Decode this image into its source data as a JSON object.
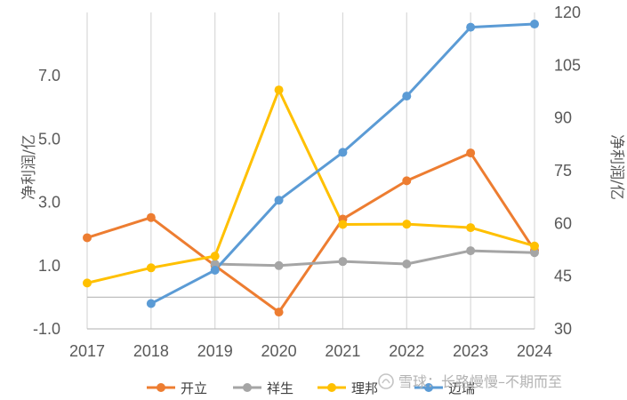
{
  "chart_data": {
    "type": "line",
    "x": [
      "2017",
      "2018",
      "2019",
      "2020",
      "2021",
      "2022",
      "2023",
      "2024"
    ],
    "left_axis": {
      "label": "净利润/亿",
      "ylim": [
        -1.0,
        9.0
      ],
      "tick_values": [
        -1.0,
        1.0,
        3.0,
        5.0,
        7.0
      ],
      "tick_labels": [
        "-1.0",
        "1.0",
        "3.0",
        "5.0",
        "7.0"
      ]
    },
    "right_axis": {
      "label": "净利润/亿",
      "ylim": [
        30,
        120
      ],
      "tick_values": [
        30,
        45,
        60,
        75,
        90,
        105,
        120
      ],
      "tick_labels": [
        "30",
        "45",
        "60",
        "75",
        "90",
        "105",
        "120"
      ]
    },
    "series": [
      {
        "name": "开立",
        "axis": "left",
        "color": "#ed7d31",
        "values": [
          1.88,
          2.52,
          1.0,
          -0.47,
          2.47,
          3.68,
          4.56,
          1.48
        ]
      },
      {
        "name": "祥生",
        "axis": "left",
        "color": "#a5a5a5",
        "values": [
          null,
          null,
          1.05,
          1.0,
          1.13,
          1.05,
          1.47,
          1.41
        ]
      },
      {
        "name": "理邦",
        "axis": "left",
        "color": "#ffc000",
        "values": [
          0.45,
          0.93,
          1.3,
          6.55,
          2.3,
          2.31,
          2.2,
          1.62
        ]
      },
      {
        "name": "迈瑞",
        "axis": "right",
        "color": "#5b9bd5",
        "values": [
          null,
          37.2,
          46.7,
          66.6,
          80.2,
          96.2,
          115.8,
          116.7
        ]
      }
    ],
    "grid": "vertical",
    "legend_position": "bottom"
  },
  "watermark": {
    "text": "雪球：长路慢慢–不期而至"
  }
}
